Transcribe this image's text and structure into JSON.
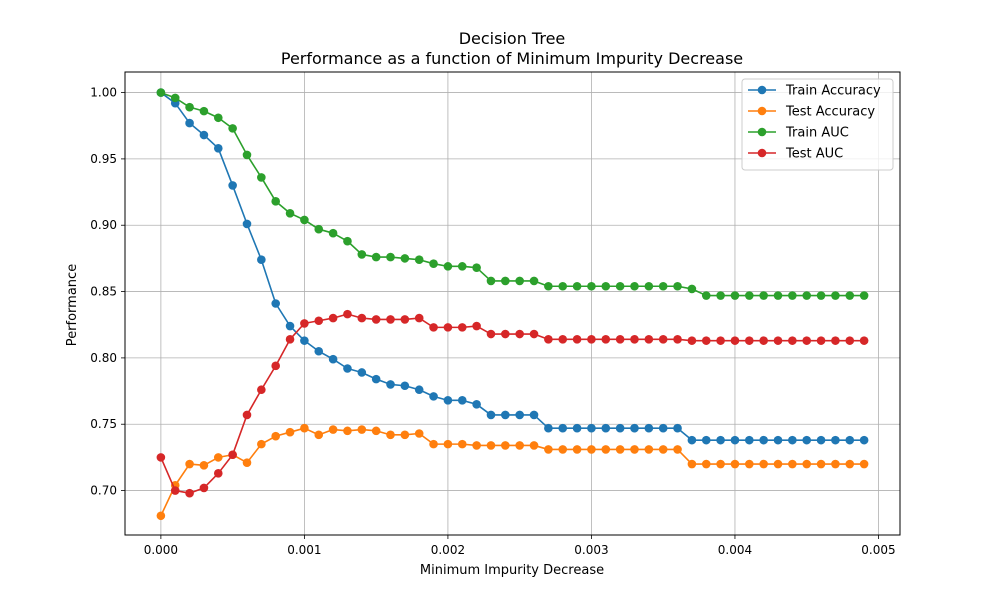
{
  "chart_data": {
    "type": "line",
    "title": "Decision Tree",
    "subtitle": "Performance as a function of Minimum Impurity Decrease",
    "xlabel": "Minimum Impurity Decrease",
    "ylabel": "Performance",
    "xlim": [
      -0.00025,
      0.00515
    ],
    "ylim": [
      0.6665,
      1.0155
    ],
    "x_ticks": [
      0.0,
      0.001,
      0.002,
      0.003,
      0.004,
      0.005
    ],
    "x_tick_labels": [
      "0.000",
      "0.001",
      "0.002",
      "0.003",
      "0.004",
      "0.005"
    ],
    "y_ticks": [
      0.7,
      0.75,
      0.8,
      0.85,
      0.9,
      0.95,
      1.0
    ],
    "y_tick_labels": [
      "0.70",
      "0.75",
      "0.80",
      "0.85",
      "0.90",
      "0.95",
      "1.00"
    ],
    "grid": true,
    "legend_position": "top-right",
    "x": [
      0.0,
      0.0001,
      0.0002,
      0.0003,
      0.0004,
      0.0005,
      0.0006,
      0.0007,
      0.0008,
      0.0009,
      0.001,
      0.0011,
      0.0012,
      0.0013,
      0.0014,
      0.0015,
      0.0016,
      0.0017,
      0.0018,
      0.0019,
      0.002,
      0.0021,
      0.0022,
      0.0023,
      0.0024,
      0.0025,
      0.0026,
      0.0027,
      0.0028,
      0.0029,
      0.003,
      0.0031,
      0.0032,
      0.0033,
      0.0034,
      0.0035,
      0.0036,
      0.0037,
      0.0038,
      0.0039,
      0.004,
      0.0041,
      0.0042,
      0.0043,
      0.0044,
      0.0045,
      0.0046,
      0.0047,
      0.0048,
      0.0049
    ],
    "series": [
      {
        "name": "Train Accuracy",
        "color": "#1f77b4",
        "values": [
          1.0,
          0.992,
          0.977,
          0.968,
          0.958,
          0.93,
          0.901,
          0.874,
          0.841,
          0.824,
          0.813,
          0.805,
          0.799,
          0.792,
          0.789,
          0.784,
          0.78,
          0.779,
          0.776,
          0.771,
          0.768,
          0.768,
          0.765,
          0.757,
          0.757,
          0.757,
          0.757,
          0.747,
          0.747,
          0.747,
          0.747,
          0.747,
          0.747,
          0.747,
          0.747,
          0.747,
          0.747,
          0.738,
          0.738,
          0.738,
          0.738,
          0.738,
          0.738,
          0.738,
          0.738,
          0.738,
          0.738,
          0.738,
          0.738,
          0.738
        ]
      },
      {
        "name": "Test Accuracy",
        "color": "#ff7f0e",
        "values": [
          0.681,
          0.704,
          0.72,
          0.719,
          0.725,
          0.727,
          0.721,
          0.735,
          0.741,
          0.744,
          0.747,
          0.742,
          0.746,
          0.745,
          0.746,
          0.745,
          0.742,
          0.742,
          0.743,
          0.735,
          0.735,
          0.735,
          0.734,
          0.734,
          0.734,
          0.734,
          0.734,
          0.731,
          0.731,
          0.731,
          0.731,
          0.731,
          0.731,
          0.731,
          0.731,
          0.731,
          0.731,
          0.72,
          0.72,
          0.72,
          0.72,
          0.72,
          0.72,
          0.72,
          0.72,
          0.72,
          0.72,
          0.72,
          0.72,
          0.72
        ]
      },
      {
        "name": "Train AUC",
        "color": "#2ca02c",
        "values": [
          1.0,
          0.996,
          0.989,
          0.986,
          0.981,
          0.973,
          0.953,
          0.936,
          0.918,
          0.909,
          0.904,
          0.897,
          0.894,
          0.888,
          0.878,
          0.876,
          0.876,
          0.875,
          0.874,
          0.871,
          0.869,
          0.869,
          0.868,
          0.858,
          0.858,
          0.858,
          0.858,
          0.854,
          0.854,
          0.854,
          0.854,
          0.854,
          0.854,
          0.854,
          0.854,
          0.854,
          0.854,
          0.852,
          0.847,
          0.847,
          0.847,
          0.847,
          0.847,
          0.847,
          0.847,
          0.847,
          0.847,
          0.847,
          0.847,
          0.847
        ]
      },
      {
        "name": "Test AUC",
        "color": "#d62728",
        "values": [
          0.725,
          0.7,
          0.698,
          0.702,
          0.713,
          0.727,
          0.757,
          0.776,
          0.794,
          0.814,
          0.826,
          0.828,
          0.83,
          0.833,
          0.83,
          0.829,
          0.829,
          0.829,
          0.83,
          0.823,
          0.823,
          0.823,
          0.824,
          0.818,
          0.818,
          0.818,
          0.818,
          0.814,
          0.814,
          0.814,
          0.814,
          0.814,
          0.814,
          0.814,
          0.814,
          0.814,
          0.814,
          0.813,
          0.813,
          0.813,
          0.813,
          0.813,
          0.813,
          0.813,
          0.813,
          0.813,
          0.813,
          0.813,
          0.813,
          0.813
        ]
      }
    ]
  }
}
